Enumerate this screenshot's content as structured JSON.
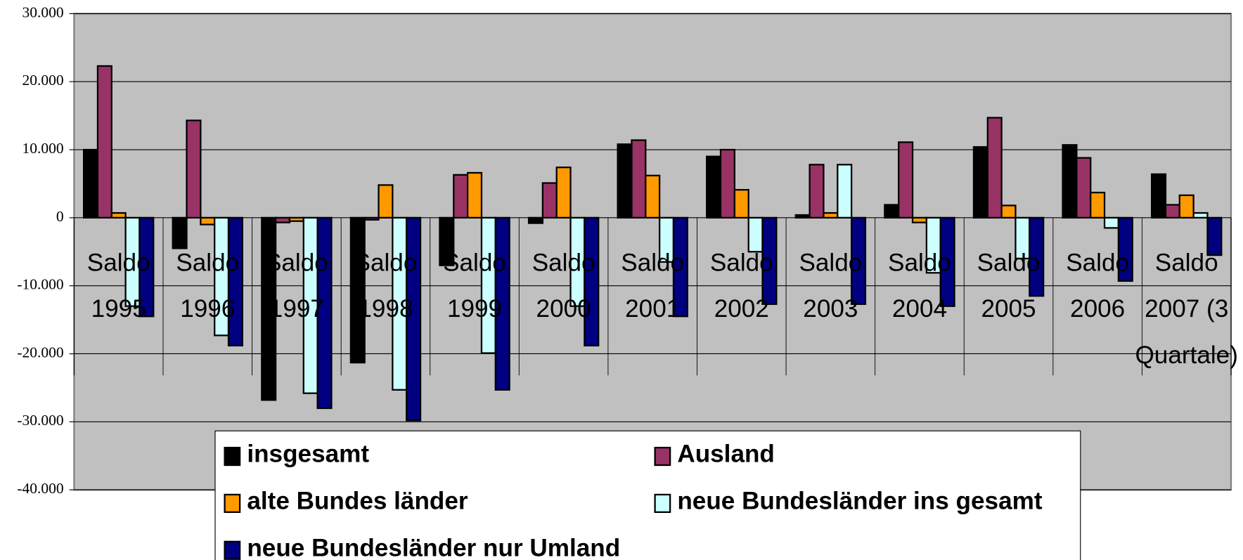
{
  "chart_data": {
    "type": "bar",
    "categories": [
      "Saldo 1995",
      "Saldo 1996",
      "Saldo 1997",
      "Saldo 1998",
      "Saldo 1999",
      "Saldo 2000",
      "Saldo 2001",
      "Saldo 2002",
      "Saldo 2003",
      "Saldo 2004",
      "Saldo 2005",
      "Saldo 2006",
      "Saldo 2007 (3 Quartale)"
    ],
    "series": [
      {
        "name": "insgesamt",
        "color": "#000000",
        "values": [
          10000,
          -4500,
          -26800,
          -21300,
          -7000,
          -800,
          10800,
          9000,
          400,
          1900,
          10400,
          10700,
          6400
        ]
      },
      {
        "name": "Ausland",
        "color": "#993366",
        "values": [
          22300,
          14300,
          -700,
          -300,
          6300,
          5100,
          11400,
          10000,
          7800,
          11100,
          14700,
          8800,
          1900
        ]
      },
      {
        "name": "alte Bundes länder",
        "color": "#ff9900",
        "values": [
          700,
          -1000,
          -500,
          4800,
          6600,
          7400,
          6200,
          4100,
          700,
          -700,
          1800,
          3700,
          3300
        ]
      },
      {
        "name": "neue Bundesländer ins gesamt",
        "color": "#ccffff",
        "values": [
          -13000,
          -17300,
          -25800,
          -25300,
          -19900,
          -13000,
          -6500,
          -5000,
          7800,
          -8100,
          -6000,
          -1500,
          700
        ]
      },
      {
        "name": "neue Bundesländer nur Umland",
        "color": "#000080",
        "values": [
          -14500,
          -18800,
          -28000,
          -29800,
          -25300,
          -18800,
          -14500,
          -12700,
          -12700,
          -13000,
          -11500,
          -9300,
          -5500
        ]
      }
    ],
    "ylim": [
      -40000,
      30000
    ],
    "yticks": [
      {
        "value": -40000,
        "label": "-40.000"
      },
      {
        "value": -30000,
        "label": "-30.000"
      },
      {
        "value": -20000,
        "label": "-20.000"
      },
      {
        "value": -10000,
        "label": "-10.000"
      },
      0,
      {
        "value": 10000,
        "label": "10.000"
      },
      {
        "value": 20000,
        "label": "20.000"
      },
      {
        "value": 30000,
        "label": "30.000"
      }
    ],
    "grid": true,
    "legend": "bottom"
  }
}
